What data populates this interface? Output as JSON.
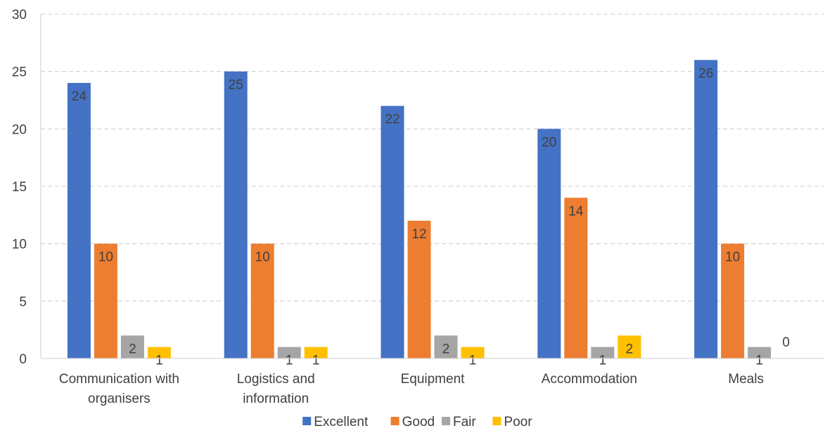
{
  "chart_data": {
    "type": "bar",
    "categories": [
      [
        "Communication with",
        "organisers"
      ],
      [
        "Logistics and",
        "information"
      ],
      [
        "Equipment"
      ],
      [
        "Accommodation"
      ],
      [
        "Meals"
      ]
    ],
    "series": [
      {
        "name": "Excellent",
        "color": "#4472C4",
        "values": [
          24,
          25,
          22,
          20,
          26
        ]
      },
      {
        "name": "Good",
        "color": "#ED7D31",
        "values": [
          10,
          10,
          12,
          14,
          10
        ]
      },
      {
        "name": "Fair",
        "color": "#A5A5A5",
        "values": [
          2,
          1,
          2,
          1,
          1
        ]
      },
      {
        "name": "Poor",
        "color": "#FFC000",
        "values": [
          1,
          1,
          1,
          2,
          0
        ]
      }
    ],
    "ylim": [
      0,
      30
    ],
    "yticks": [
      0,
      5,
      10,
      15,
      20,
      25,
      30
    ],
    "grid": true,
    "legend": "bottom"
  }
}
